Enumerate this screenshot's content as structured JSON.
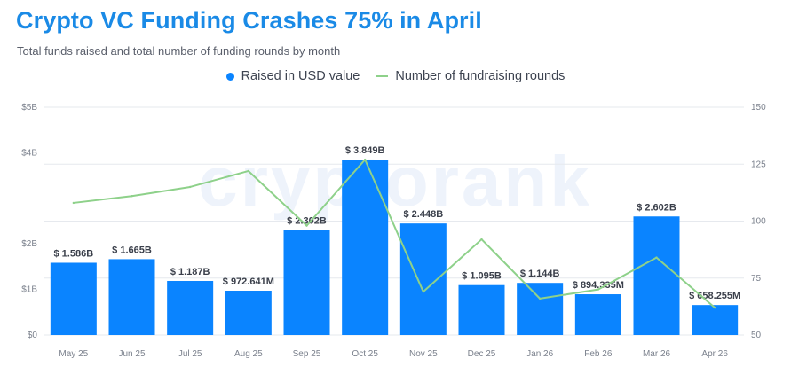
{
  "title": "Crypto VC Funding Crashes 75% in April",
  "subtitle": "Total funds raised and total number of funding rounds by month",
  "watermark": "cryptorank",
  "colors": {
    "title": "#1a8ae6",
    "bars": "#0a84ff",
    "line": "#8ed18a",
    "grid": "#e6e9ee"
  },
  "legend": {
    "bars_label": "Raised in USD value",
    "line_label": "Number of fundraising rounds",
    "position": "top-center"
  },
  "chart_data": {
    "type": "bar",
    "categories": [
      "May 25",
      "Jun 25",
      "Jul 25",
      "Aug 25",
      "Sep 25",
      "Oct 25",
      "Nov 25",
      "Dec 25",
      "Jan 26",
      "Feb 26",
      "Mar 26",
      "Apr 26"
    ],
    "series": [
      {
        "name": "Raised in USD value",
        "type": "bar",
        "axis": "left",
        "values": [
          1.586,
          1.665,
          1.187,
          0.972641,
          2.302,
          3.849,
          2.448,
          1.095,
          1.144,
          0.894335,
          2.602,
          0.658255
        ],
        "labels": [
          "$ 1.586B",
          "$ 1.665B",
          "$ 1.187B",
          "$ 972.641M",
          "$ 2.302B",
          "$ 3.849B",
          "$ 2.448B",
          "$ 1.095B",
          "$ 1.144B",
          "$ 894.335M",
          "$ 2.602B",
          "$ 658.255M"
        ]
      },
      {
        "name": "Number of fundraising rounds",
        "type": "line",
        "axis": "right",
        "values": [
          108,
          111,
          115,
          122,
          98,
          127,
          69,
          92,
          66,
          70,
          84,
          62
        ]
      }
    ],
    "ylim_left": [
      0,
      5
    ],
    "yticks_left": [
      "$0",
      "$1B",
      "$2B",
      "$4B",
      "$5B"
    ],
    "yticks_left_values": [
      0,
      1,
      2,
      4,
      5
    ],
    "ylim_right": [
      50,
      150
    ],
    "yticks_right": [
      "50",
      "75",
      "100",
      "125",
      "150"
    ],
    "yticks_right_values": [
      50,
      75,
      100,
      125,
      150
    ],
    "grid": true
  }
}
